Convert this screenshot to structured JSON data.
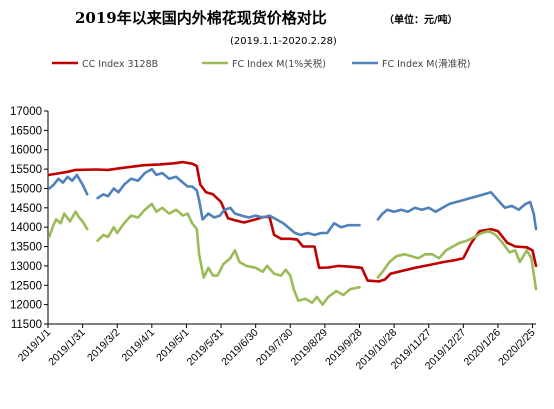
{
  "chart_data": {
    "type": "line",
    "title": "2019年以来国内外棉花现货价格对比",
    "unit_note": "（单位：元/吨）",
    "subtitle": "(2019.1.1-2020.2.28)",
    "ylim": [
      11500,
      17000
    ],
    "y_ticks": [
      11500,
      12000,
      12500,
      13000,
      13500,
      14000,
      14500,
      15000,
      15500,
      16000,
      16500,
      17000
    ],
    "x_range": [
      "2019-01-01",
      "2020-02-28"
    ],
    "x_tick_labels": [
      "2019/1/1",
      "2019/1/31",
      "2019/3/2",
      "2019/4/1",
      "2019/5/1",
      "2019/5/31",
      "2019/6/30",
      "2019/7/30",
      "2019/8/29",
      "2019/9/28",
      "2019/10/28",
      "2019/11/27",
      "2019/12/27",
      "2020/1/26",
      "2020/2/25"
    ],
    "grid": false,
    "legend_position": "top",
    "series": [
      {
        "name": "CC Index 3128B",
        "color": "#c00000",
        "points": [
          [
            "2019-01-02",
            15350
          ],
          [
            "2019-01-10",
            15390
          ],
          [
            "2019-01-18",
            15430
          ],
          [
            "2019-01-25",
            15480
          ],
          [
            "2019-02-12",
            15490
          ],
          [
            "2019-02-22",
            15480
          ],
          [
            "2019-03-04",
            15520
          ],
          [
            "2019-03-14",
            15560
          ],
          [
            "2019-03-25",
            15600
          ],
          [
            "2019-04-08",
            15620
          ],
          [
            "2019-04-20",
            15650
          ],
          [
            "2019-04-28",
            15680
          ],
          [
            "2019-05-06",
            15640
          ],
          [
            "2019-05-10",
            15580
          ],
          [
            "2019-05-13",
            15100
          ],
          [
            "2019-05-18",
            14900
          ],
          [
            "2019-05-24",
            14850
          ],
          [
            "2019-05-31",
            14650
          ],
          [
            "2019-06-06",
            14230
          ],
          [
            "2019-06-12",
            14180
          ],
          [
            "2019-06-20",
            14120
          ],
          [
            "2019-06-30",
            14200
          ],
          [
            "2019-07-06",
            14260
          ],
          [
            "2019-07-12",
            14270
          ],
          [
            "2019-07-16",
            13800
          ],
          [
            "2019-07-22",
            13700
          ],
          [
            "2019-07-30",
            13700
          ],
          [
            "2019-08-05",
            13680
          ],
          [
            "2019-08-10",
            13500
          ],
          [
            "2019-08-20",
            13500
          ],
          [
            "2019-08-24",
            12950
          ],
          [
            "2019-09-01",
            12960
          ],
          [
            "2019-09-10",
            13000
          ],
          [
            "2019-09-20",
            12980
          ],
          [
            "2019-09-30",
            12950
          ],
          [
            "2019-10-05",
            12620
          ],
          [
            "2019-10-15",
            12600
          ],
          [
            "2019-10-20",
            12650
          ],
          [
            "2019-10-25",
            12800
          ],
          [
            "2019-11-05",
            12880
          ],
          [
            "2019-11-15",
            12950
          ],
          [
            "2019-11-27",
            13020
          ],
          [
            "2019-12-10",
            13100
          ],
          [
            "2019-12-20",
            13150
          ],
          [
            "2019-12-27",
            13200
          ],
          [
            "2020-01-03",
            13600
          ],
          [
            "2020-01-10",
            13900
          ],
          [
            "2020-01-20",
            13950
          ],
          [
            "2020-01-26",
            13900
          ],
          [
            "2020-02-03",
            13600
          ],
          [
            "2020-02-10",
            13500
          ],
          [
            "2020-02-20",
            13480
          ],
          [
            "2020-02-25",
            13400
          ],
          [
            "2020-02-28",
            13000
          ]
        ]
      },
      {
        "name": "FC Index M(1%关税)",
        "color": "#9bbb59",
        "points": [
          [
            "2019-01-02",
            13750
          ],
          [
            "2019-01-05",
            14000
          ],
          [
            "2019-01-08",
            14200
          ],
          [
            "2019-01-12",
            14100
          ],
          [
            "2019-01-15",
            14350
          ],
          [
            "2019-01-20",
            14150
          ],
          [
            "2019-01-25",
            14400
          ],
          [
            "2019-01-28",
            14250
          ],
          [
            "2019-01-31",
            14150
          ],
          [
            "2019-02-04",
            13950
          ],
          [
            "null",
            null
          ],
          [
            "2019-02-13",
            13650
          ],
          [
            "2019-02-18",
            13800
          ],
          [
            "2019-02-22",
            13750
          ],
          [
            "2019-02-27",
            14000
          ],
          [
            "2019-03-02",
            13850
          ],
          [
            "2019-03-08",
            14100
          ],
          [
            "2019-03-14",
            14300
          ],
          [
            "2019-03-20",
            14250
          ],
          [
            "2019-03-26",
            14450
          ],
          [
            "2019-04-01",
            14600
          ],
          [
            "2019-04-05",
            14400
          ],
          [
            "2019-04-10",
            14500
          ],
          [
            "2019-04-16",
            14350
          ],
          [
            "2019-04-22",
            14450
          ],
          [
            "2019-04-28",
            14300
          ],
          [
            "2019-05-02",
            14350
          ],
          [
            "2019-05-06",
            14100
          ],
          [
            "2019-05-10",
            13950
          ],
          [
            "2019-05-12",
            13300
          ],
          [
            "2019-05-16",
            12700
          ],
          [
            "2019-05-20",
            12950
          ],
          [
            "2019-05-24",
            12750
          ],
          [
            "2019-05-28",
            12750
          ],
          [
            "2019-06-02",
            13050
          ],
          [
            "2019-06-08",
            13200
          ],
          [
            "2019-06-12",
            13400
          ],
          [
            "2019-06-16",
            13100
          ],
          [
            "2019-06-22",
            13000
          ],
          [
            "2019-06-30",
            12950
          ],
          [
            "2019-07-06",
            12850
          ],
          [
            "2019-07-10",
            13000
          ],
          [
            "2019-07-16",
            12800
          ],
          [
            "2019-07-22",
            12750
          ],
          [
            "2019-07-26",
            12900
          ],
          [
            "2019-07-30",
            12750
          ],
          [
            "2019-08-02",
            12400
          ],
          [
            "2019-08-06",
            12100
          ],
          [
            "2019-08-12",
            12150
          ],
          [
            "2019-08-18",
            12050
          ],
          [
            "2019-08-22",
            12200
          ],
          [
            "2019-08-27",
            12000
          ],
          [
            "2019-09-01",
            12200
          ],
          [
            "2019-09-08",
            12350
          ],
          [
            "2019-09-14",
            12250
          ],
          [
            "2019-09-20",
            12400
          ],
          [
            "2019-09-28",
            12450
          ],
          [
            "null",
            null
          ],
          [
            "2019-10-14",
            12700
          ],
          [
            "2019-10-18",
            12850
          ],
          [
            "2019-10-24",
            13100
          ],
          [
            "2019-10-30",
            13250
          ],
          [
            "2019-11-06",
            13300
          ],
          [
            "2019-11-12",
            13250
          ],
          [
            "2019-11-18",
            13200
          ],
          [
            "2019-11-24",
            13300
          ],
          [
            "2019-11-30",
            13300
          ],
          [
            "2019-12-06",
            13200
          ],
          [
            "2019-12-12",
            13400
          ],
          [
            "2019-12-18",
            13500
          ],
          [
            "2019-12-24",
            13600
          ],
          [
            "2019-12-30",
            13650
          ],
          [
            "2020-01-06",
            13750
          ],
          [
            "2020-01-12",
            13850
          ],
          [
            "2020-01-18",
            13900
          ],
          [
            "2020-01-24",
            13800
          ],
          [
            "2020-01-30",
            13600
          ],
          [
            "2020-02-05",
            13350
          ],
          [
            "2020-02-10",
            13400
          ],
          [
            "2020-02-14",
            13100
          ],
          [
            "2020-02-20",
            13400
          ],
          [
            "2020-02-24",
            13200
          ],
          [
            "2020-02-26",
            12800
          ],
          [
            "2020-02-28",
            12400
          ]
        ]
      },
      {
        "name": "FC Index M(滑准税)",
        "color": "#4f81bd",
        "points": [
          [
            "2019-01-02",
            15000
          ],
          [
            "2019-01-06",
            15100
          ],
          [
            "2019-01-10",
            15250
          ],
          [
            "2019-01-14",
            15150
          ],
          [
            "2019-01-18",
            15300
          ],
          [
            "2019-01-22",
            15200
          ],
          [
            "2019-01-26",
            15350
          ],
          [
            "2019-01-31",
            15100
          ],
          [
            "2019-02-04",
            14850
          ],
          [
            "null",
            null
          ],
          [
            "2019-02-13",
            14750
          ],
          [
            "2019-02-18",
            14850
          ],
          [
            "2019-02-22",
            14800
          ],
          [
            "2019-02-27",
            15000
          ],
          [
            "2019-03-03",
            14900
          ],
          [
            "2019-03-08",
            15100
          ],
          [
            "2019-03-14",
            15250
          ],
          [
            "2019-03-20",
            15200
          ],
          [
            "2019-03-26",
            15400
          ],
          [
            "2019-04-01",
            15500
          ],
          [
            "2019-04-05",
            15350
          ],
          [
            "2019-04-10",
            15400
          ],
          [
            "2019-04-16",
            15250
          ],
          [
            "2019-04-22",
            15300
          ],
          [
            "2019-04-28",
            15150
          ],
          [
            "2019-05-02",
            15050
          ],
          [
            "2019-05-06",
            15050
          ],
          [
            "2019-05-10",
            14950
          ],
          [
            "2019-05-12",
            14700
          ],
          [
            "2019-05-15",
            14200
          ],
          [
            "2019-05-20",
            14350
          ],
          [
            "2019-05-25",
            14250
          ],
          [
            "2019-05-30",
            14300
          ],
          [
            "2019-06-03",
            14450
          ],
          [
            "2019-06-08",
            14500
          ],
          [
            "2019-06-12",
            14350
          ],
          [
            "2019-06-18",
            14300
          ],
          [
            "2019-06-24",
            14250
          ],
          [
            "2019-06-30",
            14300
          ],
          [
            "2019-07-06",
            14250
          ],
          [
            "2019-07-12",
            14300
          ],
          [
            "2019-07-18",
            14200
          ],
          [
            "2019-07-24",
            14100
          ],
          [
            "2019-07-30",
            13950
          ],
          [
            "2019-08-03",
            13850
          ],
          [
            "2019-08-08",
            13800
          ],
          [
            "2019-08-14",
            13850
          ],
          [
            "2019-08-20",
            13800
          ],
          [
            "2019-08-26",
            13850
          ],
          [
            "2019-08-31",
            13850
          ],
          [
            "2019-09-06",
            14100
          ],
          [
            "2019-09-12",
            14000
          ],
          [
            "2019-09-18",
            14050
          ],
          [
            "2019-09-24",
            14050
          ],
          [
            "2019-09-28",
            14050
          ],
          [
            "null",
            null
          ],
          [
            "2019-10-14",
            14200
          ],
          [
            "2019-10-18",
            14350
          ],
          [
            "2019-10-22",
            14450
          ],
          [
            "2019-10-28",
            14400
          ],
          [
            "2019-11-03",
            14450
          ],
          [
            "2019-11-09",
            14400
          ],
          [
            "2019-11-15",
            14500
          ],
          [
            "2019-11-21",
            14450
          ],
          [
            "2019-11-27",
            14500
          ],
          [
            "2019-12-03",
            14400
          ],
          [
            "2019-12-09",
            14500
          ],
          [
            "2019-12-15",
            14600
          ],
          [
            "2019-12-21",
            14650
          ],
          [
            "2019-12-27",
            14700
          ],
          [
            "2020-01-02",
            14750
          ],
          [
            "2020-01-08",
            14800
          ],
          [
            "2020-01-14",
            14850
          ],
          [
            "2020-01-20",
            14900
          ],
          [
            "2020-01-26",
            14700
          ],
          [
            "2020-02-01",
            14500
          ],
          [
            "2020-02-07",
            14550
          ],
          [
            "2020-02-13",
            14450
          ],
          [
            "2020-02-19",
            14600
          ],
          [
            "2020-02-23",
            14650
          ],
          [
            "2020-02-26",
            14350
          ],
          [
            "2020-02-28",
            13950
          ]
        ]
      }
    ]
  }
}
